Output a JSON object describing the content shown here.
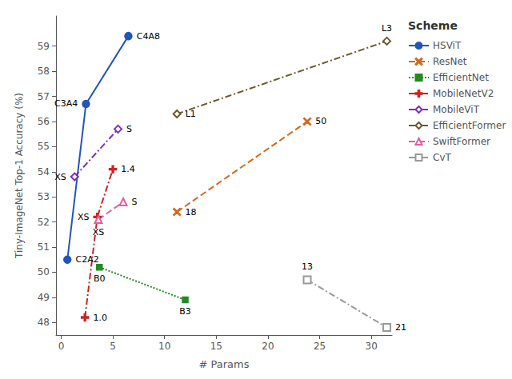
{
  "chart_data": {
    "type": "line",
    "xlabel": "# Params",
    "ylabel": "Tiny-ImageNet Top-1 Accuracy (%)",
    "xlim": [
      -0.5,
      32
    ],
    "ylim": [
      47.5,
      60.2
    ],
    "xticks": [
      0,
      5,
      10,
      15,
      20,
      25,
      30
    ],
    "yticks": [
      48,
      49,
      50,
      51,
      52,
      53,
      54,
      55,
      56,
      57,
      58,
      59
    ],
    "grid": false,
    "legend": "upper right",
    "legend_title": "Scheme",
    "series": [
      {
        "name": "HSViT",
        "color": "#2255bb",
        "marker": "circle",
        "line_style": "solid",
        "x": [
          0.6,
          2.4,
          6.5
        ],
        "values": [
          50.5,
          56.7,
          59.4
        ],
        "labels": [
          "C2A2",
          "C3A4",
          "C4A8"
        ]
      },
      {
        "name": "ResNet",
        "color": "#d2691e",
        "marker": "x",
        "line_style": "dashed",
        "x": [
          11.2,
          23.8
        ],
        "values": [
          52.4,
          56.0
        ],
        "labels": [
          "18",
          "50"
        ]
      },
      {
        "name": "EfficientNet",
        "color": "#228B22",
        "marker": "square",
        "line_style": "dotted",
        "x": [
          3.7,
          12.0
        ],
        "values": [
          50.2,
          48.9
        ],
        "labels": [
          "B0",
          "B3"
        ]
      },
      {
        "name": "MobileNetV2",
        "color": "#cc2222",
        "marker": "plus",
        "line_style": "dashdot",
        "x": [
          2.3,
          3.5,
          5.0
        ],
        "values": [
          48.2,
          52.2,
          54.1
        ],
        "labels": [
          "1.0",
          "XS",
          "1.4"
        ]
      },
      {
        "name": "MobileViT",
        "color": "#7b2fbe",
        "marker": "open diamond",
        "line_style": "dashdot",
        "x": [
          1.3,
          5.5
        ],
        "values": [
          53.8,
          55.7
        ],
        "labels": [
          "XS",
          "S"
        ]
      },
      {
        "name": "EfficientFormer",
        "color": "#6b5a2e",
        "marker": "open diamond",
        "line_style": "dashdot",
        "x": [
          11.2,
          31.5
        ],
        "values": [
          56.3,
          59.2
        ],
        "labels": [
          "L1",
          "L3"
        ]
      },
      {
        "name": "SwiftFormer",
        "color": "#e060a0",
        "marker": "open triangle",
        "line_style": "dashed",
        "x": [
          3.6,
          6.0
        ],
        "values": [
          52.1,
          52.8
        ],
        "labels": [
          "XS",
          "S"
        ]
      },
      {
        "name": "CvT",
        "color": "#999999",
        "marker": "open square",
        "line_style": "dashdot",
        "x": [
          23.8,
          31.5
        ],
        "values": [
          49.7,
          47.8
        ],
        "labels": [
          "13",
          "21"
        ]
      }
    ]
  }
}
